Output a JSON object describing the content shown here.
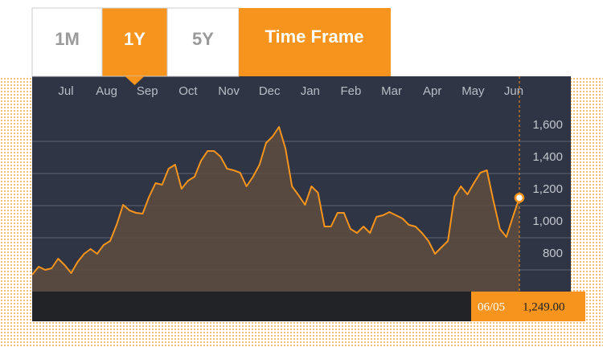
{
  "chart_data": {
    "type": "area",
    "tabs": [
      "1M",
      "1Y",
      "5Y"
    ],
    "selected_tab": 1,
    "tab_title": "Time Frame",
    "xticks": [
      "Jul",
      "Aug",
      "Sep",
      "Oct",
      "Nov",
      "Dec",
      "Jan",
      "Feb",
      "Mar",
      "Apr",
      "May",
      "Jun"
    ],
    "values": [
      770,
      820,
      800,
      810,
      870,
      830,
      780,
      850,
      900,
      930,
      900,
      955,
      980,
      1080,
      1205,
      1170,
      1155,
      1150,
      1255,
      1340,
      1330,
      1430,
      1455,
      1305,
      1355,
      1380,
      1480,
      1540,
      1540,
      1505,
      1430,
      1420,
      1405,
      1320,
      1380,
      1455,
      1590,
      1630,
      1690,
      1555,
      1320,
      1265,
      1205,
      1320,
      1280,
      1070,
      1070,
      1155,
      1155,
      1055,
      1030,
      1070,
      1030,
      1130,
      1140,
      1160,
      1140,
      1120,
      1080,
      1070,
      1030,
      980,
      900,
      940,
      980,
      1255,
      1320,
      1270,
      1340,
      1405,
      1420,
      1230,
      1055,
      1005,
      1130,
      1249
    ],
    "color": "#f7941d",
    "ylim": [
      665,
      1840
    ],
    "yticks": [
      800,
      {
        "value": 1000,
        "label": "1,000"
      },
      {
        "value": 1200,
        "label": "1,200"
      },
      {
        "value": 1400,
        "label": "1,400"
      },
      {
        "value": 1600,
        "label": "1,600"
      }
    ],
    "grid": true,
    "cursor_date": "06/05",
    "cursor_value_label": "1,249.00"
  }
}
